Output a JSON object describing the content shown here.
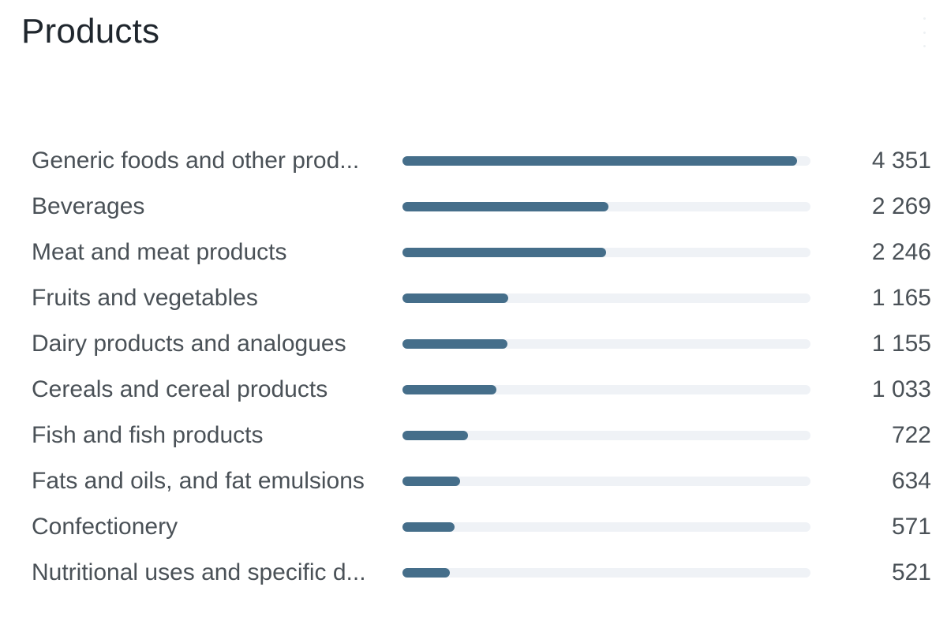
{
  "header": {
    "title": "Products"
  },
  "chart_data": {
    "type": "bar",
    "orientation": "horizontal",
    "title": "Products",
    "categories": [
      "Generic foods and other prod...",
      "Beverages",
      "Meat and meat products",
      "Fruits and vegetables",
      "Dairy products and analogues",
      "Cereals and cereal products",
      "Fish and fish products",
      "Fats and oils, and fat emulsions",
      "Confectionery",
      "Nutritional uses and specific d..."
    ],
    "values": [
      4351,
      2269,
      2246,
      1165,
      1155,
      1033,
      722,
      634,
      571,
      521
    ],
    "value_labels": [
      "4 351",
      "2 269",
      "2 246",
      "1 165",
      "1 155",
      "1 033",
      "722",
      "634",
      "571",
      "521"
    ],
    "xlim": [
      0,
      4500
    ],
    "xlabel": "",
    "ylabel": "",
    "grid": false
  },
  "colors": {
    "bar_fill": "#456e8a",
    "bar_track": "#eff2f6",
    "title_text": "#1f262d",
    "label_text": "#4a5157"
  }
}
